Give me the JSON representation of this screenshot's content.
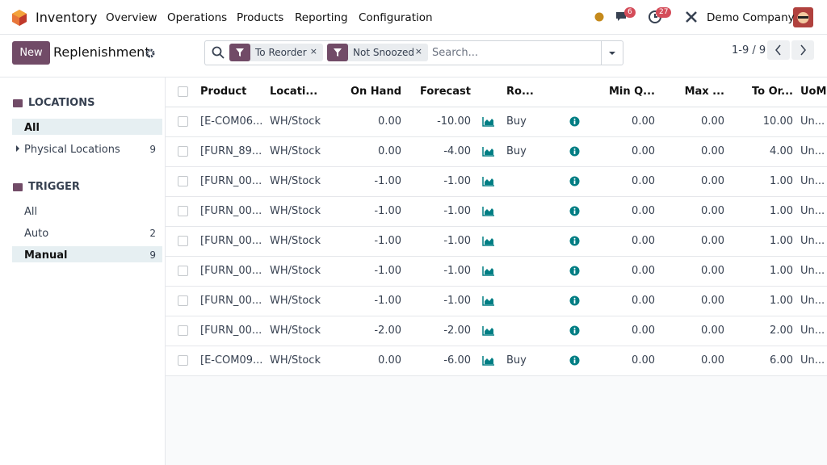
{
  "navbar": {
    "app": "Inventory",
    "menu": [
      "Overview",
      "Operations",
      "Products",
      "Reporting",
      "Configuration"
    ],
    "messages_badge": "6",
    "activities_badge": "27",
    "company": "Demo Company"
  },
  "control_panel": {
    "new_button": "New",
    "title": "Replenishment",
    "facets": [
      "To Reorder",
      "Not Snoozed"
    ],
    "search_placeholder": "Search...",
    "pager": "1-9 / 9"
  },
  "sidebar": {
    "sections": [
      {
        "title": "LOCATIONS",
        "items": [
          {
            "label": "All",
            "selected": true
          },
          {
            "label": "Physical Locations",
            "count": "9",
            "expandable": true
          }
        ]
      },
      {
        "title": "TRIGGER",
        "items": [
          {
            "label": "All"
          },
          {
            "label": "Auto",
            "count": "2"
          },
          {
            "label": "Manual",
            "count": "9",
            "selected": true
          }
        ]
      }
    ]
  },
  "table": {
    "headers": [
      "Product",
      "Locati...",
      "On Hand",
      "Forecast",
      "Ro...",
      "Min Q...",
      "Max ...",
      "To Or...",
      "UoM"
    ],
    "rows": [
      {
        "product": "[E-COM06...",
        "location": "WH/Stock",
        "on_hand": "0.00",
        "forecast": "-10.00",
        "route": "Buy",
        "min": "0.00",
        "max": "0.00",
        "to_order": "10.00",
        "uom": "Un..."
      },
      {
        "product": "[FURN_89...",
        "location": "WH/Stock",
        "on_hand": "0.00",
        "forecast": "-4.00",
        "route": "Buy",
        "min": "0.00",
        "max": "0.00",
        "to_order": "4.00",
        "uom": "Un..."
      },
      {
        "product": "[FURN_00...",
        "location": "WH/Stock",
        "on_hand": "-1.00",
        "forecast": "-1.00",
        "min": "0.00",
        "max": "0.00",
        "to_order": "1.00",
        "uom": "Un..."
      },
      {
        "product": "[FURN_00...",
        "location": "WH/Stock",
        "on_hand": "-1.00",
        "forecast": "-1.00",
        "min": "0.00",
        "max": "0.00",
        "to_order": "1.00",
        "uom": "Un..."
      },
      {
        "product": "[FURN_00...",
        "location": "WH/Stock",
        "on_hand": "-1.00",
        "forecast": "-1.00",
        "min": "0.00",
        "max": "0.00",
        "to_order": "1.00",
        "uom": "Un..."
      },
      {
        "product": "[FURN_00...",
        "location": "WH/Stock",
        "on_hand": "-1.00",
        "forecast": "-1.00",
        "min": "0.00",
        "max": "0.00",
        "to_order": "1.00",
        "uom": "Un..."
      },
      {
        "product": "[FURN_00...",
        "location": "WH/Stock",
        "on_hand": "-1.00",
        "forecast": "-1.00",
        "min": "0.00",
        "max": "0.00",
        "to_order": "1.00",
        "uom": "Un..."
      },
      {
        "product": "[FURN_00...",
        "location": "WH/Stock",
        "on_hand": "-2.00",
        "forecast": "-2.00",
        "min": "0.00",
        "max": "0.00",
        "to_order": "2.00",
        "uom": "Un..."
      },
      {
        "product": "[E-COM09...",
        "location": "WH/Stock",
        "on_hand": "0.00",
        "forecast": "-6.00",
        "route": "Buy",
        "min": "0.00",
        "max": "0.00",
        "to_order": "6.00",
        "uom": "Un..."
      }
    ]
  }
}
